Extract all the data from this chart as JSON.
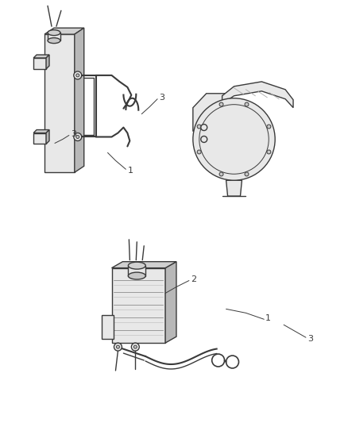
{
  "bg_color": "#ffffff",
  "line_color": "#3a3a3a",
  "lw": 1.0,
  "lw_thick": 1.5,
  "fill_light": "#e8e8e8",
  "fill_mid": "#d0d0d0",
  "fill_dark": "#b8b8b8",
  "fill_gray": "#c8c8c8",
  "hatch_color": "#888888"
}
